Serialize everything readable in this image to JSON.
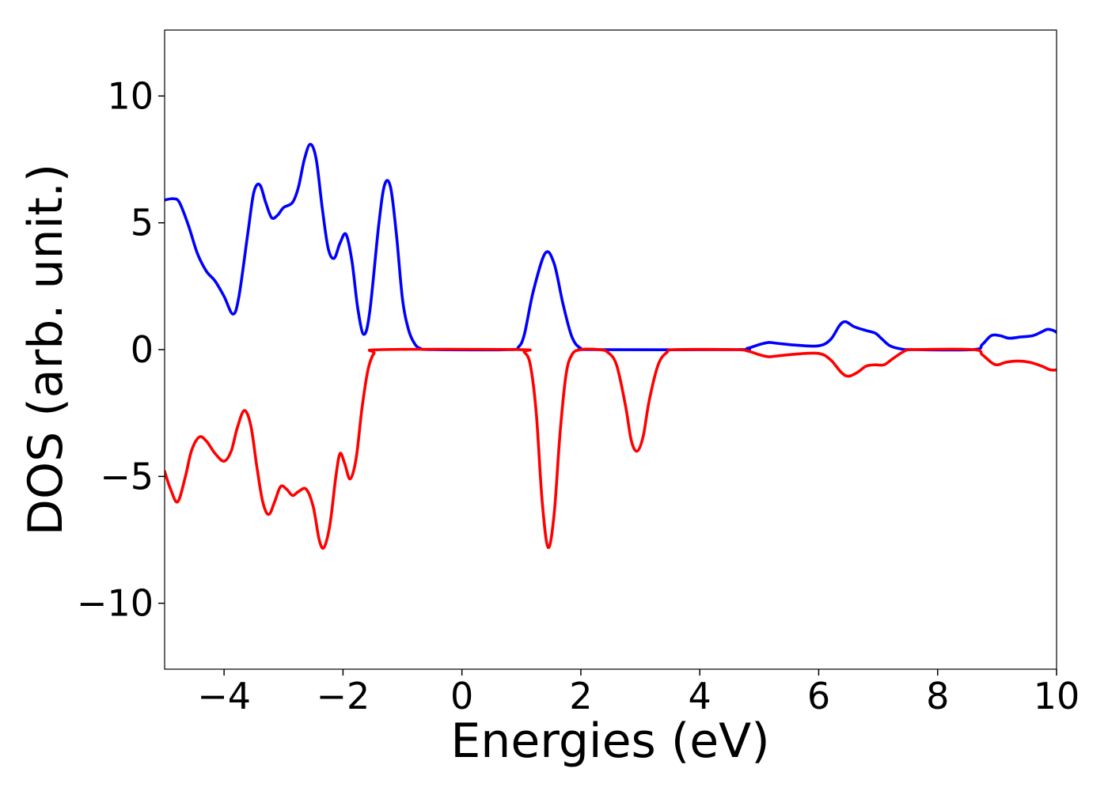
{
  "chart_data": {
    "type": "line",
    "xlabel": "Energies (eV)",
    "ylabel": "DOS (arb. unit.)",
    "xlim": [
      -5,
      10
    ],
    "ylim": [
      -12.6,
      12.6
    ],
    "xticks": [
      -4,
      -2,
      0,
      2,
      4,
      6,
      8,
      10
    ],
    "xtick_labels": [
      "−4",
      "−2",
      "0",
      "2",
      "4",
      "6",
      "8",
      "10"
    ],
    "yticks": [
      -10,
      -5,
      0,
      5,
      10
    ],
    "ytick_labels": [
      "−10",
      "−5",
      "0",
      "5",
      "10"
    ],
    "grid": false,
    "legend": "none",
    "series": [
      {
        "color": "#0000ff",
        "points": [
          [
            -5.0,
            5.9
          ],
          [
            -4.85,
            5.95
          ],
          [
            -4.75,
            5.8
          ],
          [
            -4.6,
            4.9
          ],
          [
            -4.45,
            3.8
          ],
          [
            -4.3,
            3.1
          ],
          [
            -4.15,
            2.7
          ],
          [
            -4.0,
            2.1
          ],
          [
            -3.85,
            1.4
          ],
          [
            -3.75,
            2.1
          ],
          [
            -3.6,
            4.6
          ],
          [
            -3.5,
            6.2
          ],
          [
            -3.4,
            6.5
          ],
          [
            -3.3,
            5.8
          ],
          [
            -3.2,
            5.2
          ],
          [
            -3.1,
            5.3
          ],
          [
            -3.0,
            5.6
          ],
          [
            -2.85,
            5.8
          ],
          [
            -2.75,
            6.4
          ],
          [
            -2.65,
            7.5
          ],
          [
            -2.55,
            8.1
          ],
          [
            -2.45,
            7.5
          ],
          [
            -2.35,
            5.6
          ],
          [
            -2.25,
            4.0
          ],
          [
            -2.15,
            3.6
          ],
          [
            -2.05,
            4.2
          ],
          [
            -1.95,
            4.55
          ],
          [
            -1.85,
            3.5
          ],
          [
            -1.75,
            1.6
          ],
          [
            -1.65,
            0.6
          ],
          [
            -1.55,
            1.5
          ],
          [
            -1.4,
            4.9
          ],
          [
            -1.3,
            6.5
          ],
          [
            -1.2,
            6.4
          ],
          [
            -1.1,
            4.5
          ],
          [
            -1.0,
            2.0
          ],
          [
            -0.9,
            0.8
          ],
          [
            -0.8,
            0.25
          ],
          [
            -0.7,
            0.05
          ],
          [
            -0.5,
            0.0
          ],
          [
            0.8,
            0.0
          ],
          [
            0.95,
            0.1
          ],
          [
            1.05,
            0.6
          ],
          [
            1.2,
            2.3
          ],
          [
            1.4,
            3.8
          ],
          [
            1.55,
            3.4
          ],
          [
            1.7,
            1.8
          ],
          [
            1.85,
            0.5
          ],
          [
            2.0,
            0.05
          ],
          [
            2.2,
            0.0
          ],
          [
            4.6,
            0.0
          ],
          [
            4.8,
            0.05
          ],
          [
            5.0,
            0.2
          ],
          [
            5.15,
            0.28
          ],
          [
            5.3,
            0.25
          ],
          [
            5.6,
            0.18
          ],
          [
            6.0,
            0.15
          ],
          [
            6.2,
            0.4
          ],
          [
            6.35,
            0.95
          ],
          [
            6.45,
            1.1
          ],
          [
            6.6,
            0.9
          ],
          [
            6.8,
            0.75
          ],
          [
            6.95,
            0.65
          ],
          [
            7.05,
            0.45
          ],
          [
            7.2,
            0.15
          ],
          [
            7.4,
            0.02
          ],
          [
            7.6,
            0.0
          ],
          [
            8.6,
            0.0
          ],
          [
            8.75,
            0.2
          ],
          [
            8.9,
            0.55
          ],
          [
            9.05,
            0.55
          ],
          [
            9.2,
            0.45
          ],
          [
            9.4,
            0.5
          ],
          [
            9.6,
            0.55
          ],
          [
            9.75,
            0.7
          ],
          [
            9.85,
            0.8
          ],
          [
            9.95,
            0.75
          ],
          [
            10.0,
            0.68
          ]
        ]
      },
      {
        "color": "#ff0000",
        "points": [
          [
            -5.0,
            -4.8
          ],
          [
            -4.9,
            -5.5
          ],
          [
            -4.78,
            -6.0
          ],
          [
            -4.65,
            -5.0
          ],
          [
            -4.55,
            -4.0
          ],
          [
            -4.42,
            -3.45
          ],
          [
            -4.3,
            -3.6
          ],
          [
            -4.15,
            -4.1
          ],
          [
            -4.0,
            -4.4
          ],
          [
            -3.88,
            -4.0
          ],
          [
            -3.78,
            -3.1
          ],
          [
            -3.66,
            -2.4
          ],
          [
            -3.55,
            -3.0
          ],
          [
            -3.45,
            -4.6
          ],
          [
            -3.35,
            -6.0
          ],
          [
            -3.25,
            -6.5
          ],
          [
            -3.15,
            -6.0
          ],
          [
            -3.05,
            -5.4
          ],
          [
            -2.95,
            -5.5
          ],
          [
            -2.85,
            -5.75
          ],
          [
            -2.75,
            -5.6
          ],
          [
            -2.62,
            -5.5
          ],
          [
            -2.5,
            -6.2
          ],
          [
            -2.4,
            -7.5
          ],
          [
            -2.32,
            -7.8
          ],
          [
            -2.22,
            -6.9
          ],
          [
            -2.12,
            -5.0
          ],
          [
            -2.05,
            -4.1
          ],
          [
            -1.97,
            -4.5
          ],
          [
            -1.88,
            -5.1
          ],
          [
            -1.78,
            -4.3
          ],
          [
            -1.68,
            -2.3
          ],
          [
            -1.58,
            -0.8
          ],
          [
            -1.48,
            -0.15
          ],
          [
            -1.35,
            0.0
          ],
          [
            0.95,
            0.0
          ],
          [
            1.05,
            -0.1
          ],
          [
            1.15,
            -0.6
          ],
          [
            1.25,
            -2.5
          ],
          [
            1.35,
            -6.0
          ],
          [
            1.45,
            -7.8
          ],
          [
            1.55,
            -6.5
          ],
          [
            1.65,
            -3.3
          ],
          [
            1.75,
            -1.0
          ],
          [
            1.85,
            -0.2
          ],
          [
            2.0,
            0.0
          ],
          [
            2.3,
            0.0
          ],
          [
            2.45,
            -0.1
          ],
          [
            2.6,
            -0.6
          ],
          [
            2.75,
            -2.2
          ],
          [
            2.85,
            -3.6
          ],
          [
            2.95,
            -4.0
          ],
          [
            3.05,
            -3.4
          ],
          [
            3.15,
            -2.0
          ],
          [
            3.3,
            -0.6
          ],
          [
            3.45,
            -0.1
          ],
          [
            3.6,
            0.0
          ],
          [
            4.6,
            0.0
          ],
          [
            4.8,
            -0.05
          ],
          [
            5.0,
            -0.2
          ],
          [
            5.15,
            -0.28
          ],
          [
            5.3,
            -0.25
          ],
          [
            5.6,
            -0.18
          ],
          [
            6.0,
            -0.15
          ],
          [
            6.2,
            -0.4
          ],
          [
            6.38,
            -0.9
          ],
          [
            6.5,
            -1.05
          ],
          [
            6.65,
            -0.9
          ],
          [
            6.8,
            -0.65
          ],
          [
            6.95,
            -0.6
          ],
          [
            7.1,
            -0.6
          ],
          [
            7.25,
            -0.35
          ],
          [
            7.45,
            -0.05
          ],
          [
            7.6,
            0.0
          ],
          [
            8.6,
            0.0
          ],
          [
            8.75,
            -0.2
          ],
          [
            8.9,
            -0.5
          ],
          [
            9.0,
            -0.6
          ],
          [
            9.15,
            -0.5
          ],
          [
            9.35,
            -0.45
          ],
          [
            9.55,
            -0.5
          ],
          [
            9.75,
            -0.65
          ],
          [
            9.9,
            -0.8
          ],
          [
            10.0,
            -0.8
          ]
        ]
      }
    ]
  }
}
